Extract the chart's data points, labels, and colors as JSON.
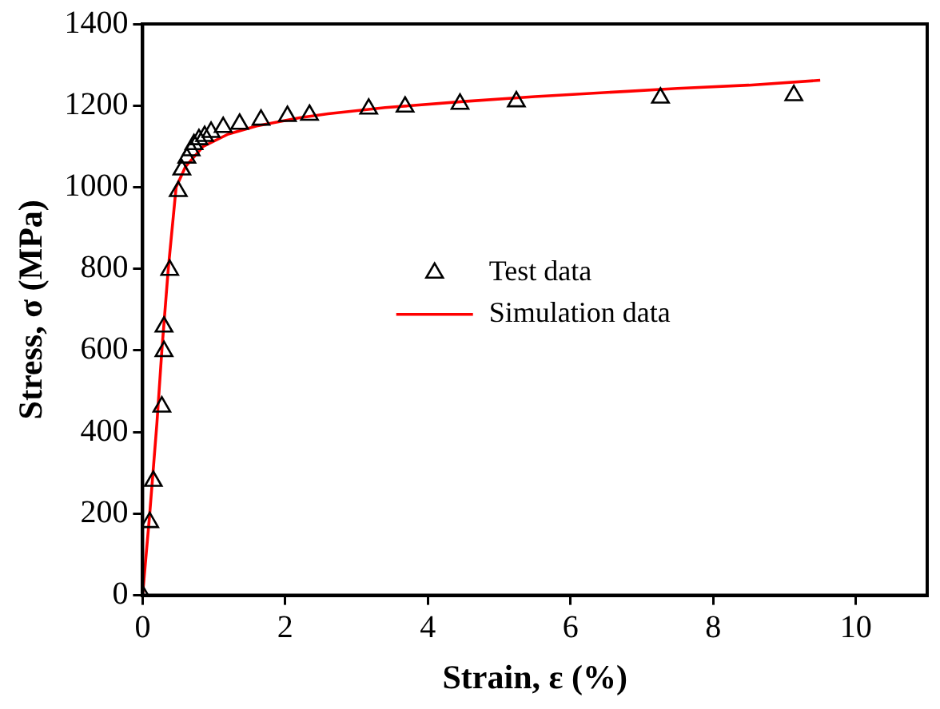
{
  "chart_data": {
    "type": "scatter",
    "xlabel": "Strain, ε (%)",
    "ylabel": "Stress, σ (MPa)",
    "xlim": [
      0,
      11
    ],
    "xticks": [
      0,
      2,
      4,
      6,
      8,
      10
    ],
    "ylim": [
      0,
      1400
    ],
    "yticks": [
      0,
      200,
      400,
      600,
      800,
      1000,
      1200,
      1400
    ],
    "grid": false,
    "legend": "center",
    "series": [
      {
        "name": "Test data",
        "marker": "triangle",
        "color": "#000000",
        "x": [
          0,
          0.1,
          0.15,
          0.27,
          0.3,
          0.3,
          0.38,
          0.5,
          0.55,
          0.62,
          0.68,
          0.72,
          0.79,
          0.87,
          0.96,
          1.13,
          1.36,
          1.66,
          2.03,
          2.34,
          3.17,
          3.68,
          4.45,
          5.24,
          7.26,
          9.13
        ],
        "values": [
          0,
          179,
          280,
          462,
          598,
          658,
          797,
          990,
          1043,
          1072,
          1090,
          1105,
          1117,
          1125,
          1135,
          1147,
          1155,
          1165,
          1174,
          1177,
          1192,
          1197,
          1204,
          1210,
          1219,
          1225
        ]
      },
      {
        "name": "Simulation data",
        "type": "line",
        "marker": "none",
        "line_style": "solid",
        "color": "#ff0000",
        "x": [
          0,
          0.1,
          0.2,
          0.27,
          0.36,
          0.47,
          0.6,
          0.85,
          1.2,
          1.6,
          2.2,
          2.6,
          3.4,
          4.5,
          5.5,
          6.8,
          7.5,
          8.5,
          9.5
        ],
        "values": [
          0,
          200,
          420,
          600,
          800,
          1000,
          1050,
          1100,
          1130,
          1150,
          1170,
          1180,
          1195,
          1210,
          1222,
          1235,
          1242,
          1250,
          1262
        ]
      }
    ]
  }
}
